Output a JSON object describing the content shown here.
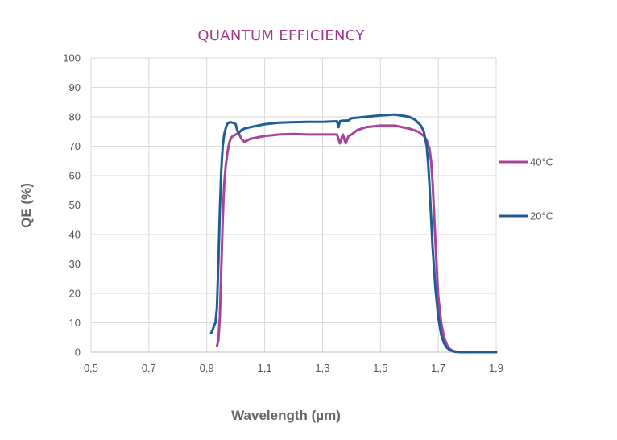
{
  "chart_data": {
    "type": "line",
    "title": "QUANTUM EFFICIENCY",
    "xlabel": "Wavelength (µm)",
    "ylabel": "QE (%)",
    "xlim": [
      0.5,
      1.9
    ],
    "ylim": [
      0,
      100
    ],
    "x_ticks": [
      0.5,
      0.7,
      0.9,
      1.1,
      1.3,
      1.5,
      1.7,
      1.9
    ],
    "x_tick_labels": [
      "0,5",
      "0,7",
      "0,9",
      "1,1",
      "1,3",
      "1,5",
      "1,7",
      "1,9"
    ],
    "y_ticks": [
      0,
      10,
      20,
      30,
      40,
      50,
      60,
      70,
      80,
      90,
      100
    ],
    "y_tick_labels": [
      "0",
      "10",
      "20",
      "30",
      "40",
      "50",
      "60",
      "70",
      "80",
      "90",
      "100"
    ],
    "grid": true,
    "legend_position": "right",
    "series": [
      {
        "name": "40°C",
        "color": "#a8439b",
        "x": [
          0.935,
          0.94,
          0.945,
          0.95,
          0.955,
          0.96,
          0.965,
          0.97,
          0.975,
          0.98,
          0.985,
          0.99,
          1.0,
          1.01,
          1.02,
          1.03,
          1.05,
          1.1,
          1.15,
          1.2,
          1.25,
          1.3,
          1.35,
          1.36,
          1.37,
          1.38,
          1.39,
          1.4,
          1.42,
          1.45,
          1.5,
          1.55,
          1.6,
          1.63,
          1.65,
          1.66,
          1.67,
          1.675,
          1.68,
          1.685,
          1.69,
          1.695,
          1.7,
          1.71,
          1.72,
          1.73,
          1.74,
          1.75,
          1.76,
          1.78,
          1.8,
          1.85,
          1.9
        ],
        "y": [
          2,
          4,
          12,
          28,
          45,
          57,
          63,
          67,
          70,
          72,
          73,
          73.5,
          74,
          74.5,
          72.5,
          71.5,
          72.5,
          73.5,
          74,
          74.2,
          74,
          74,
          74,
          71,
          74,
          71,
          73.5,
          74,
          75.5,
          76.5,
          77,
          77,
          76,
          75,
          73.5,
          72,
          69,
          65,
          58,
          48,
          38,
          28,
          19,
          10,
          5,
          2.5,
          1,
          0.5,
          0.2,
          0,
          0,
          0,
          0
        ]
      },
      {
        "name": "20°C",
        "color": "#1f5d94",
        "x": [
          0.915,
          0.92,
          0.925,
          0.93,
          0.935,
          0.94,
          0.945,
          0.95,
          0.955,
          0.96,
          0.965,
          0.97,
          0.975,
          0.98,
          0.99,
          1.0,
          1.005,
          1.01,
          1.02,
          1.03,
          1.05,
          1.1,
          1.15,
          1.2,
          1.25,
          1.3,
          1.35,
          1.355,
          1.36,
          1.37,
          1.38,
          1.39,
          1.4,
          1.45,
          1.5,
          1.55,
          1.6,
          1.62,
          1.64,
          1.65,
          1.66,
          1.665,
          1.67,
          1.675,
          1.68,
          1.69,
          1.7,
          1.71,
          1.72,
          1.73,
          1.74,
          1.75,
          1.76,
          1.78,
          1.8,
          1.85,
          1.9
        ],
        "y": [
          6.5,
          7.5,
          9,
          10,
          15,
          30,
          48,
          62,
          70,
          74,
          76,
          77.5,
          78,
          78.2,
          78,
          77.5,
          75.5,
          74.5,
          75.5,
          76,
          76.5,
          77.5,
          78,
          78.2,
          78.3,
          78.3,
          78.5,
          76.5,
          78.5,
          78.7,
          78.7,
          78.8,
          79.5,
          80,
          80.5,
          80.8,
          80,
          79,
          77,
          75,
          70,
          64,
          56,
          46,
          36,
          22,
          12,
          6,
          3,
          1.5,
          0.7,
          0.3,
          0.1,
          0,
          0,
          0,
          0
        ]
      }
    ]
  }
}
